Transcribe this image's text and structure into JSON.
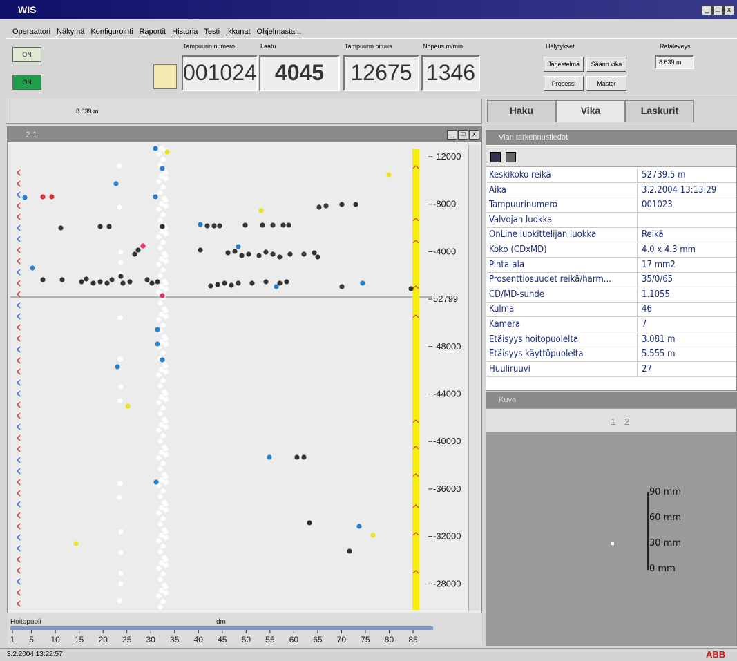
{
  "window": {
    "title": "WIS"
  },
  "menu": [
    "Operaattori",
    "Näkymä",
    "Konfigurointi",
    "Raportit",
    "Historia",
    "Testi",
    "Ikkunat",
    "Ohjelmasta..."
  ],
  "header": {
    "status_buttons": [
      "ON",
      "ON"
    ],
    "fields": [
      {
        "label": "Tampuurin numero",
        "value": "001024"
      },
      {
        "label": "Laatu",
        "value": "4045"
      },
      {
        "label": "Tampuurin pituus",
        "value": "12675"
      },
      {
        "label": "Nopeus m/min",
        "value": "1346"
      }
    ],
    "alarms": {
      "label": "Hälytykset",
      "buttons": [
        "Järjestelmä",
        "Säänn.vika",
        "Prosessi",
        "Master"
      ]
    },
    "web_width": {
      "label": "Rataleveys",
      "value": "8.639 m"
    }
  },
  "width_bar": "8.639 m",
  "tabs": [
    "Haku",
    "Vika",
    "Laskurit"
  ],
  "map": {
    "title": "2.1",
    "yticks": [
      "-12000",
      "-8000",
      "-4000",
      "52799",
      "-48000",
      "-44000",
      "-40000",
      "-36000",
      "-32000",
      "-28000"
    ],
    "side_label": "Hoitopuoli",
    "x_unit": "dm",
    "xticks": [
      1,
      5,
      10,
      15,
      20,
      25,
      30,
      35,
      40,
      45,
      50,
      55,
      60,
      65,
      70,
      75,
      80,
      85
    ]
  },
  "details": {
    "title": "Vian tarkennustiedot",
    "rows": [
      [
        "Keskikoko reikä",
        "52739.5 m"
      ],
      [
        "Aika",
        "3.2.2004 13:13:29"
      ],
      [
        "Tampuurinumero",
        "001023"
      ],
      [
        "Valvojan luokka",
        null
      ],
      [
        "OnLine luokittelijan luokka",
        "Reikä"
      ],
      [
        "Koko (CDxMD)",
        "4.0 x 4.3 mm"
      ],
      [
        "Pinta-ala",
        "17 mm2"
      ],
      [
        "Prosenttiosuudet reikä/harm...",
        "35/0/65"
      ],
      [
        "CD/MD-suhde",
        "1.1055"
      ],
      [
        "Kulma",
        "46"
      ],
      [
        "Kamera",
        "7"
      ],
      [
        "Etäisyys hoitopuolelta",
        "3.081 m"
      ],
      [
        "Etäisyys käyttöpuolelta",
        "5.555 m"
      ],
      [
        "Huuliruuvi",
        "27"
      ]
    ]
  },
  "image": {
    "title": "Kuva",
    "toolbar": [
      "1",
      "2"
    ],
    "scale": [
      "90 mm",
      "60 mm",
      "30 mm",
      "0 mm"
    ]
  },
  "status": {
    "time": "3.2.2004 13:22:57",
    "logo": "ABB"
  }
}
